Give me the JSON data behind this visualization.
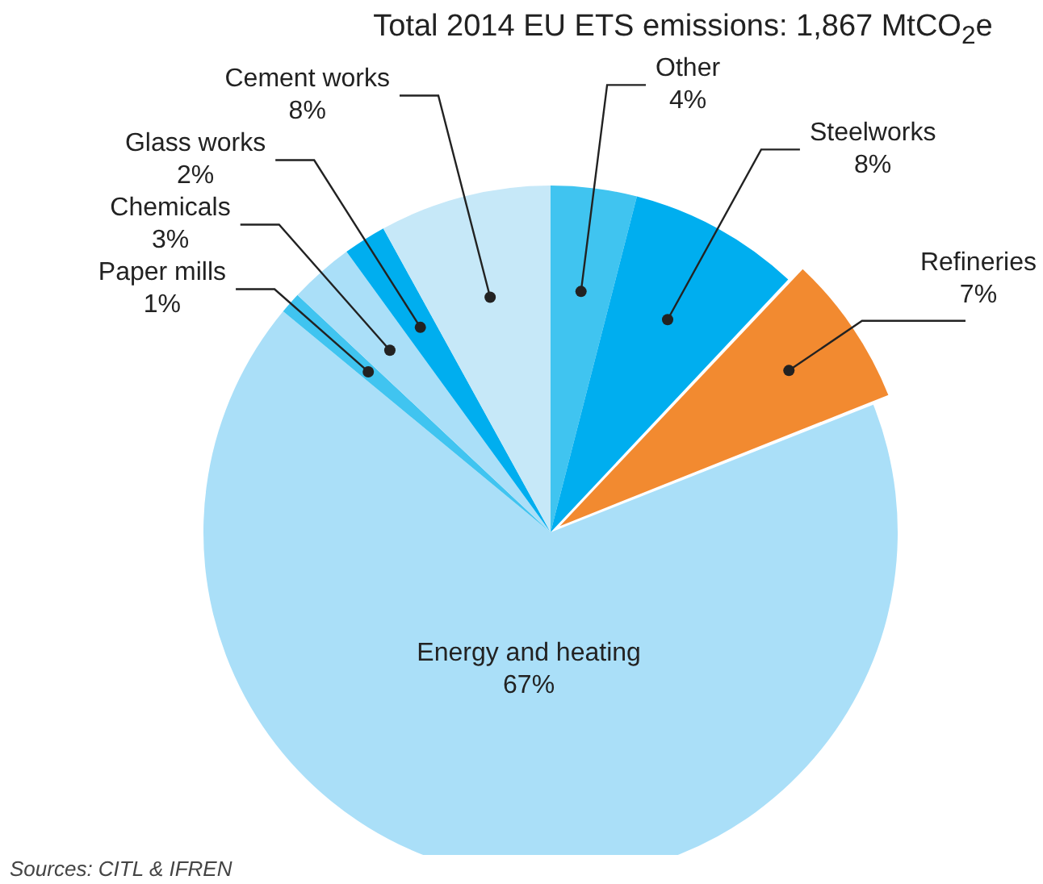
{
  "chart_data": {
    "type": "pie",
    "title": "Total 2014 EU ETS emissions: 1,867 MtCO$_{2}$e",
    "annotations": [
      "Sources: CITL & IFREN"
    ],
    "categories": [
      "Other",
      "Steelworks",
      "Refineries",
      "Energy and heating",
      "Paper mills",
      "Chemicals",
      "Glass works",
      "Cement works"
    ],
    "values": [
      4,
      8,
      7,
      67,
      1,
      3,
      2,
      8
    ],
    "value_labels": [
      "4%",
      "8%",
      "7%",
      "67%",
      "1%",
      "3%",
      "2%",
      "8%"
    ],
    "colors": [
      "#40c4f0",
      "#00aeef",
      "#f28a30",
      "#aadff8",
      "#40c4f0",
      "#aadff8",
      "#00aeef",
      "#c6e8f8"
    ]
  }
}
